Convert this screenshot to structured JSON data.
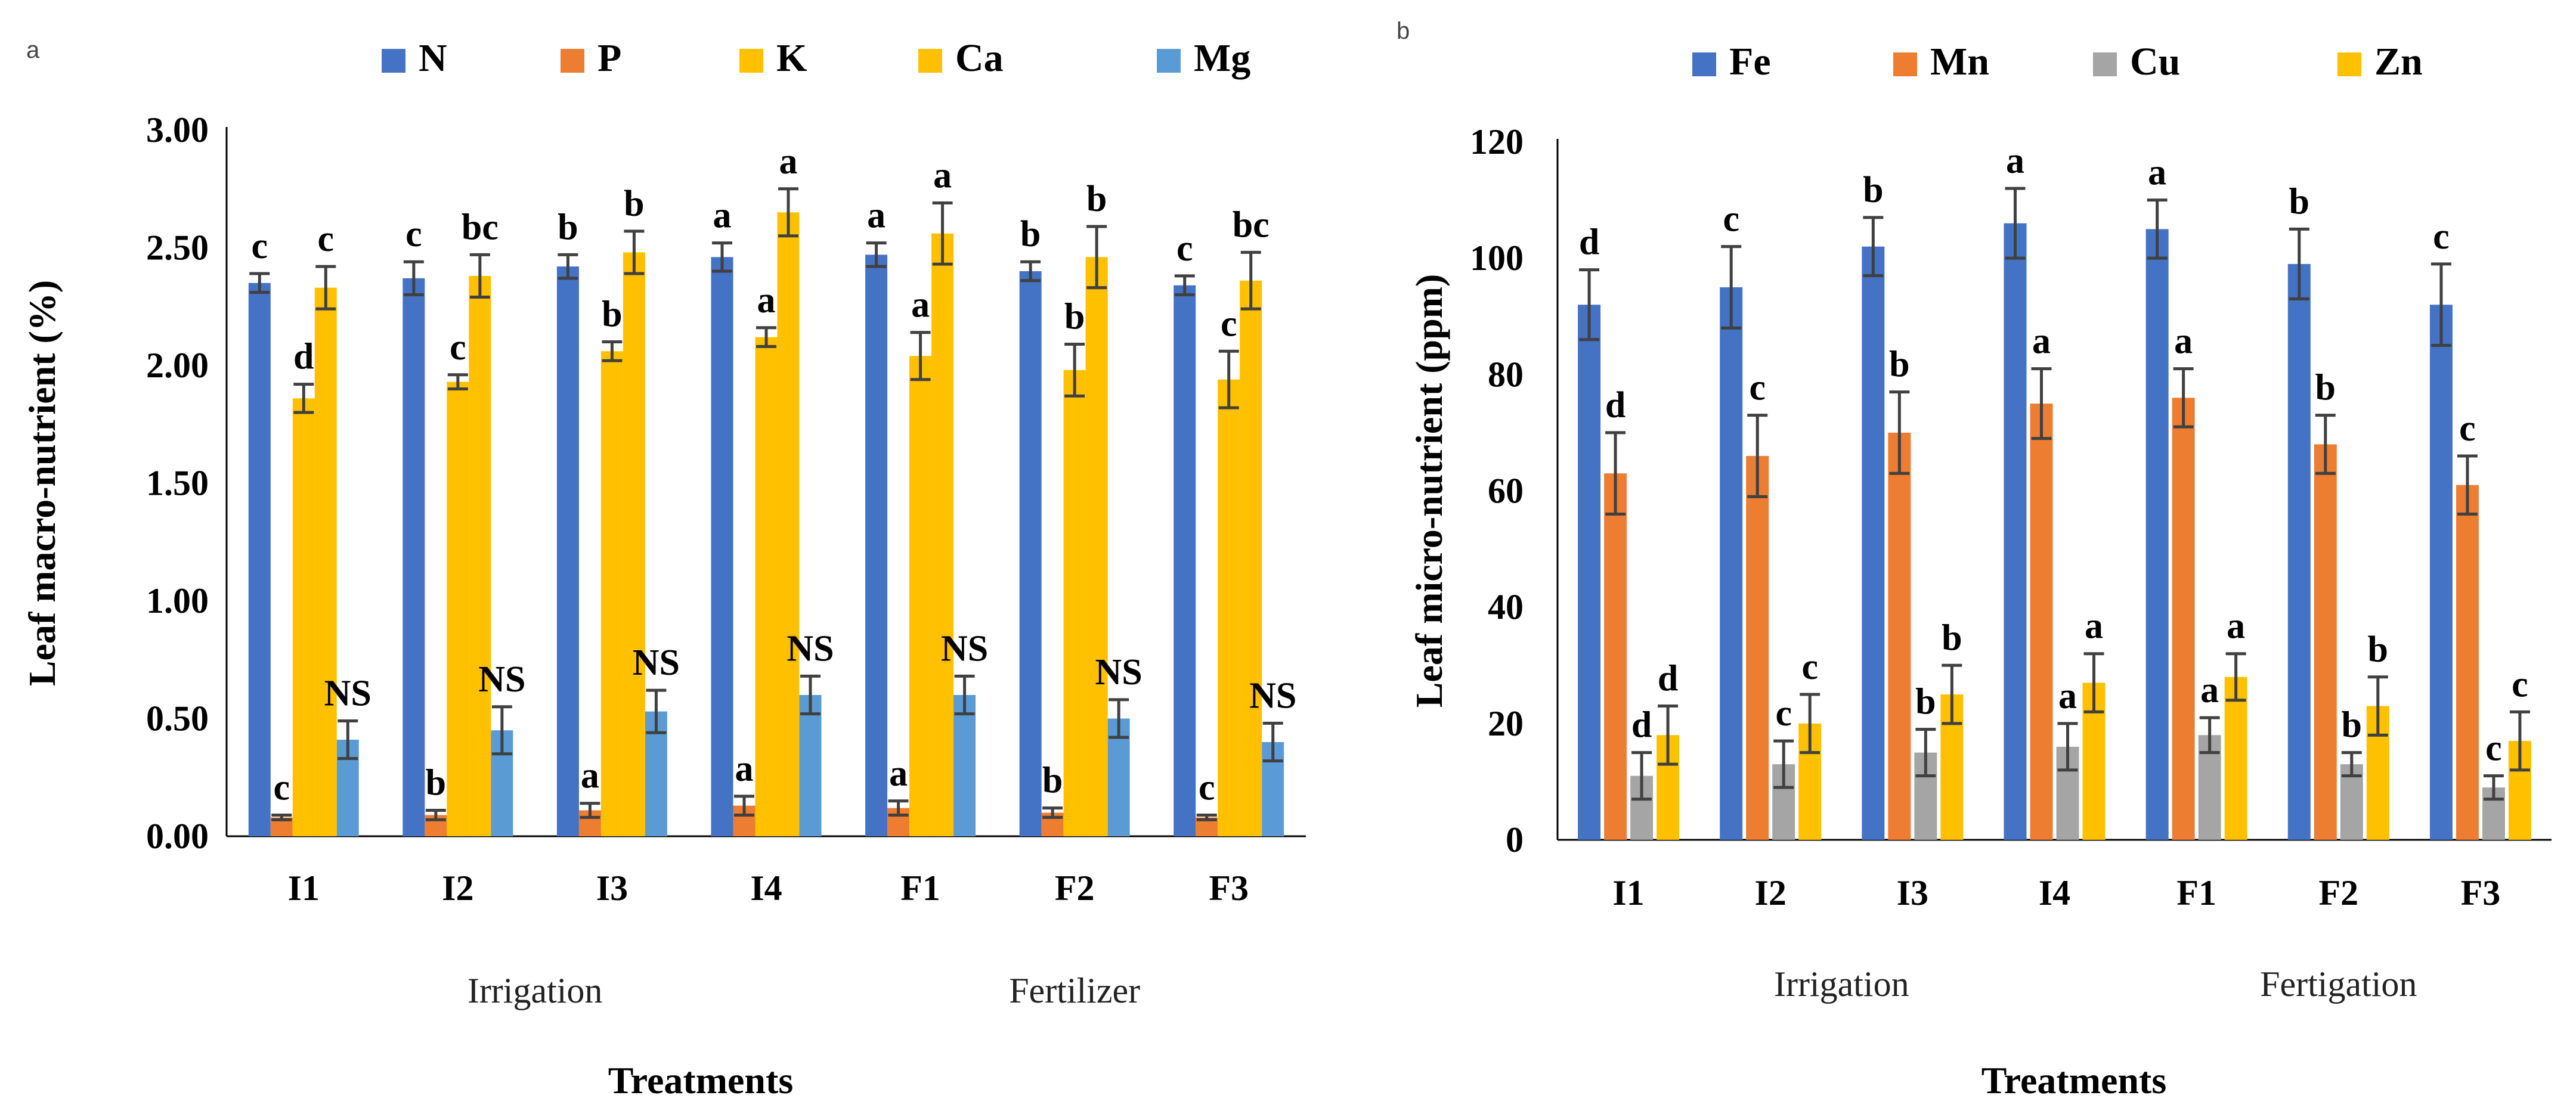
{
  "chart_data": [
    {
      "type": "bar",
      "panel_label": "a",
      "title": "",
      "xlabel": "Treatments",
      "ylabel": "Leaf macro-nutrient (%)",
      "ylim": [
        0,
        3
      ],
      "yticks": [
        "0.00",
        "0.50",
        "1.00",
        "1.50",
        "2.00",
        "2.50",
        "3.00"
      ],
      "ytick_values": [
        0,
        0.5,
        1,
        1.5,
        2,
        2.5,
        3
      ],
      "categories": [
        "I1",
        "I2",
        "I3",
        "I4",
        "F1",
        "F2",
        "F3"
      ],
      "groups": [
        {
          "label": "Irrigation",
          "from": 0,
          "to": 3
        },
        {
          "label": "Fertilizer",
          "from": 4,
          "to": 6
        }
      ],
      "legend_position": "top",
      "series": [
        {
          "name": "N",
          "color": "#4472c4",
          "values": [
            2.35,
            2.37,
            2.42,
            2.46,
            2.47,
            2.4,
            2.34
          ],
          "errors": [
            0.04,
            0.07,
            0.05,
            0.06,
            0.05,
            0.04,
            0.04
          ],
          "labels": [
            "c",
            "c",
            "b",
            "a",
            "a",
            "b",
            "c"
          ]
        },
        {
          "name": "P",
          "color": "#ed7d31",
          "values": [
            0.08,
            0.09,
            0.11,
            0.13,
            0.12,
            0.1,
            0.08
          ],
          "errors": [
            0.01,
            0.02,
            0.03,
            0.04,
            0.03,
            0.02,
            0.01
          ],
          "labels": [
            "c",
            "b",
            "a",
            "a",
            "a",
            "b",
            "c"
          ]
        },
        {
          "name": "K",
          "color": "#ffc000",
          "values": [
            1.86,
            1.93,
            2.06,
            2.12,
            2.04,
            1.98,
            1.94
          ],
          "errors": [
            0.06,
            0.03,
            0.04,
            0.04,
            0.1,
            0.11,
            0.12
          ],
          "labels": [
            "d",
            "c",
            "b",
            "a",
            "a",
            "b",
            "c"
          ]
        },
        {
          "name": "Ca",
          "color": "#ffc000",
          "values": [
            2.33,
            2.38,
            2.48,
            2.65,
            2.56,
            2.46,
            2.36
          ],
          "errors": [
            0.09,
            0.09,
            0.09,
            0.1,
            0.13,
            0.13,
            0.12
          ],
          "labels": [
            "c",
            "bc",
            "b",
            "a",
            "a",
            "b",
            "bc"
          ]
        },
        {
          "name": "Mg",
          "color": "#5b9bd5",
          "values": [
            0.41,
            0.45,
            0.53,
            0.6,
            0.6,
            0.5,
            0.4
          ],
          "errors": [
            0.08,
            0.1,
            0.09,
            0.08,
            0.08,
            0.08,
            0.08
          ],
          "labels": [
            "NS",
            "NS",
            "NS",
            "NS",
            "NS",
            "NS",
            "NS"
          ]
        }
      ]
    },
    {
      "type": "bar",
      "panel_label": "b",
      "title": "",
      "xlabel": "Treatments",
      "ylabel": "Leaf micro-nutrient (ppm)",
      "ylim": [
        0,
        120
      ],
      "yticks": [
        "0",
        "20",
        "40",
        "60",
        "80",
        "100",
        "120"
      ],
      "ytick_values": [
        0,
        20,
        40,
        60,
        80,
        100,
        120
      ],
      "categories": [
        "I1",
        "I2",
        "I3",
        "I4",
        "F1",
        "F2",
        "F3"
      ],
      "groups": [
        {
          "label": "Irrigation",
          "from": 0,
          "to": 3
        },
        {
          "label": "Fertigation",
          "from": 4,
          "to": 6
        }
      ],
      "legend_position": "top",
      "series": [
        {
          "name": "Fe",
          "color": "#4472c4",
          "values": [
            92,
            95,
            102,
            106,
            105,
            99,
            92
          ],
          "errors": [
            6,
            7,
            5,
            6,
            5,
            6,
            7
          ],
          "labels": [
            "d",
            "c",
            "b",
            "a",
            "a",
            "b",
            "c"
          ]
        },
        {
          "name": "Mn",
          "color": "#ed7d31",
          "values": [
            63,
            66,
            70,
            75,
            76,
            68,
            61
          ],
          "errors": [
            7,
            7,
            7,
            6,
            5,
            5,
            5
          ],
          "labels": [
            "d",
            "c",
            "b",
            "a",
            "a",
            "b",
            "c"
          ]
        },
        {
          "name": "Cu",
          "color": "#a5a5a5",
          "values": [
            11,
            13,
            15,
            16,
            18,
            13,
            9
          ],
          "errors": [
            4,
            4,
            4,
            4,
            3,
            2,
            2
          ],
          "labels": [
            "d",
            "c",
            "b",
            "a",
            "a",
            "b",
            "c"
          ]
        },
        {
          "name": "Zn",
          "color": "#ffc000",
          "values": [
            18,
            20,
            25,
            27,
            28,
            23,
            17
          ],
          "errors": [
            5,
            5,
            5,
            5,
            4,
            5,
            5
          ],
          "labels": [
            "d",
            "c",
            "b",
            "a",
            "a",
            "b",
            "c"
          ]
        }
      ]
    }
  ]
}
